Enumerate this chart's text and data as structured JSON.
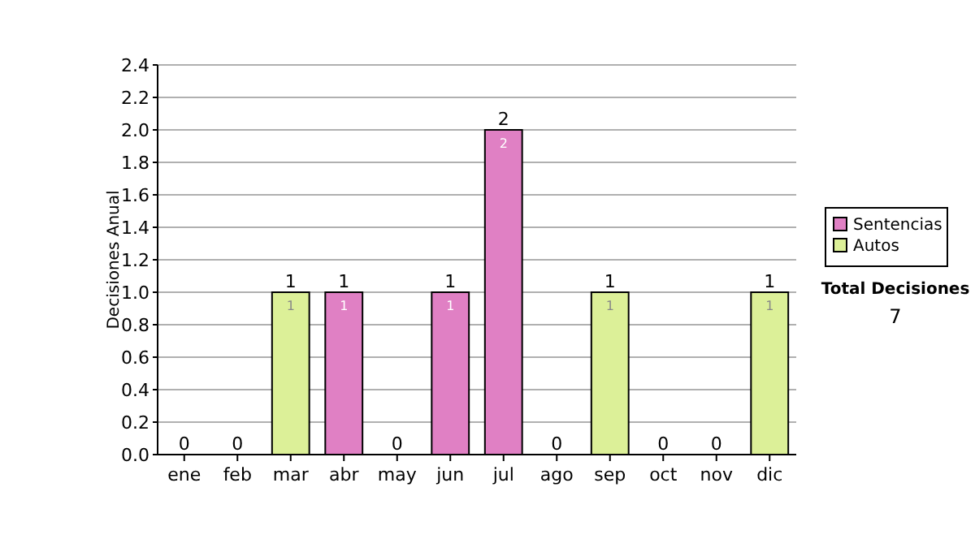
{
  "chart_data": {
    "type": "bar",
    "stacked": true,
    "ylabel": "Decisiones Anual",
    "categories": [
      "ene",
      "feb",
      "mar",
      "abr",
      "may",
      "jun",
      "jul",
      "ago",
      "sep",
      "oct",
      "nov",
      "dic"
    ],
    "series": [
      {
        "name": "Sentencias",
        "color": "#e080c4",
        "values": [
          0,
          0,
          0,
          1,
          0,
          1,
          2,
          0,
          0,
          0,
          0,
          0
        ],
        "value_labels": [
          null,
          null,
          null,
          "1",
          null,
          "1",
          "2",
          null,
          null,
          null,
          null,
          null
        ]
      },
      {
        "name": "Autos",
        "color": "#dcf098",
        "values": [
          0,
          0,
          1,
          0,
          0,
          0,
          0,
          0,
          1,
          0,
          0,
          1
        ],
        "value_labels": [
          null,
          null,
          "1",
          null,
          null,
          null,
          null,
          null,
          "1",
          null,
          null,
          "1"
        ]
      }
    ],
    "totals": [
      "0",
      "0",
      "1",
      "1",
      "0",
      "1",
      "2",
      "0",
      "1",
      "0",
      "0",
      "1"
    ],
    "ylim": [
      0,
      2.4
    ],
    "yticks": [
      {
        "value": 0,
        "label": "0.0"
      },
      {
        "value": 0.2,
        "label": "0.2"
      },
      {
        "value": 0.4,
        "label": "0.4"
      },
      {
        "value": 0.6,
        "label": "0.6"
      },
      {
        "value": 0.8,
        "label": "0.8"
      },
      {
        "value": 1,
        "label": "1.0"
      },
      {
        "value": 1.2,
        "label": "1.2"
      },
      {
        "value": 1.4,
        "label": "1.4"
      },
      {
        "value": 1.6,
        "label": "1.6"
      },
      {
        "value": 1.8,
        "label": "1.8"
      },
      {
        "value": 2,
        "label": "2.0"
      },
      {
        "value": 2.2,
        "label": "2.2"
      },
      {
        "value": 2.4,
        "label": "2.4"
      }
    ],
    "grid": "y",
    "legend": "right",
    "annotations": [
      "Total Decisiones",
      "7"
    ]
  }
}
